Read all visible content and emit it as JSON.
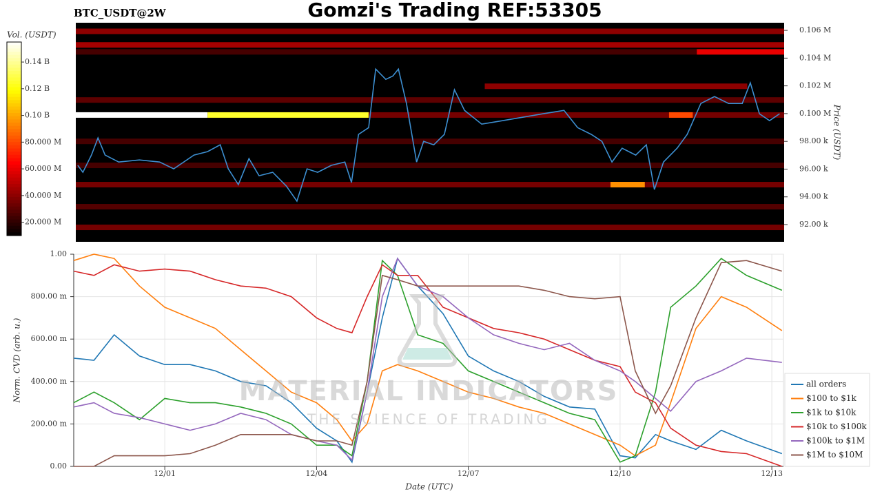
{
  "chart_data": [
    {
      "type": "heatmap",
      "title": "Gomzi's Trading REF:53305",
      "subtitle": "BTC_USDT@2W",
      "ylabel": "Price (USDT)",
      "xlim": [
        -0.8,
        13.23
      ],
      "ylim": [
        90760,
        106550
      ],
      "yticks": [
        {
          "value": 92000,
          "label": "92.00 k"
        },
        {
          "value": 94000,
          "label": "94.00 k"
        },
        {
          "value": 96000,
          "label": "96.00 k"
        },
        {
          "value": 98000,
          "label": "98.00 k"
        },
        {
          "value": 100000,
          "label": "0.100 M"
        },
        {
          "value": 102000,
          "label": "0.102 M"
        },
        {
          "value": 104000,
          "label": "0.104 M"
        },
        {
          "value": 106000,
          "label": "0.106 M"
        }
      ],
      "colorbar": {
        "label": "Vol. (USDT)",
        "lim": [
          10000000,
          155000000
        ],
        "ticks": [
          {
            "value": 20000000,
            "label": "20.000 M"
          },
          {
            "value": 40000000,
            "label": "40.000 M"
          },
          {
            "value": 60000000,
            "label": "60.000 M"
          },
          {
            "value": 80000000,
            "label": "80.000 M"
          },
          {
            "value": 100000000,
            "label": "0.10 B"
          },
          {
            "value": 120000000,
            "label": "0.12 B"
          },
          {
            "value": 140000000,
            "label": "0.14 B"
          }
        ]
      },
      "bands": [
        {
          "price": 105930,
          "start": -0.8,
          "end": 13.23,
          "volume": 40000000
        },
        {
          "price": 104950,
          "start": -0.8,
          "end": 13.23,
          "volume": 45000000
        },
        {
          "price": 104450,
          "start": -0.8,
          "end": 11.5,
          "volume": 25000000
        },
        {
          "price": 104450,
          "start": 11.5,
          "end": 13.23,
          "volume": 60000000
        },
        {
          "price": 101970,
          "start": 7.3,
          "end": 12.5,
          "volume": 40000000
        },
        {
          "price": 100980,
          "start": -0.8,
          "end": 13.23,
          "volume": 30000000
        },
        {
          "price": 99900,
          "start": -0.8,
          "end": 1.81,
          "volume": 155000000
        },
        {
          "price": 99900,
          "start": 1.81,
          "end": 5.0,
          "volume": 125000000
        },
        {
          "price": 99900,
          "start": 5.0,
          "end": 13.23,
          "volume": 35000000
        },
        {
          "price": 99900,
          "start": 10.95,
          "end": 11.42,
          "volume": 80000000
        },
        {
          "price": 98000,
          "start": -0.8,
          "end": 13.23,
          "volume": 25000000
        },
        {
          "price": 96270,
          "start": -0.8,
          "end": 13.23,
          "volume": 25000000
        },
        {
          "price": 94880,
          "start": -0.8,
          "end": 13.23,
          "volume": 35000000
        },
        {
          "price": 94880,
          "start": 9.79,
          "end": 10.47,
          "volume": 95000000
        },
        {
          "price": 93290,
          "start": -0.8,
          "end": 13.23,
          "volume": 28000000
        },
        {
          "price": 91800,
          "start": -0.8,
          "end": 13.23,
          "volume": 35000000
        }
      ],
      "line": {
        "color": "#3d8fd1",
        "x": [
          -0.76,
          -0.66,
          -0.49,
          -0.36,
          -0.22,
          0.05,
          0.46,
          0.86,
          1.14,
          1.54,
          1.81,
          2.06,
          2.22,
          2.42,
          2.63,
          2.83,
          3.1,
          3.37,
          3.58,
          3.78,
          3.99,
          4.26,
          4.53,
          4.66,
          4.8,
          5.0,
          5.14,
          5.34,
          5.48,
          5.59,
          5.75,
          5.95,
          6.09,
          6.29,
          6.5,
          6.7,
          6.9,
          7.24,
          7.65,
          8.06,
          8.46,
          8.87,
          9.14,
          9.41,
          9.62,
          9.82,
          10.02,
          10.29,
          10.5,
          10.66,
          10.84,
          11.11,
          11.31,
          11.58,
          11.85,
          12.13,
          12.4,
          12.56,
          12.74,
          12.94,
          13.14
        ],
        "values": [
          96270,
          95770,
          97010,
          98250,
          97010,
          96510,
          96660,
          96510,
          96020,
          97010,
          97260,
          97750,
          96020,
          94880,
          96760,
          95520,
          95770,
          94780,
          93690,
          96020,
          95770,
          96270,
          96510,
          95030,
          98500,
          98990,
          103210,
          102470,
          102710,
          103210,
          100730,
          96510,
          98000,
          97750,
          98500,
          101720,
          100230,
          99240,
          99490,
          99740,
          99990,
          100230,
          98990,
          98500,
          98000,
          96510,
          97510,
          97010,
          97750,
          94530,
          96510,
          97510,
          98500,
          100730,
          101230,
          100730,
          100730,
          102220,
          99990,
          99490,
          99990
        ]
      }
    },
    {
      "type": "line",
      "xlabel": "Date (UTC)",
      "ylabel": "Norm. CVD (arb. u.)",
      "xlim": [
        -0.8,
        13.23
      ],
      "ylim": [
        0,
        1.0
      ],
      "xticks": [
        {
          "value": 1,
          "label": "12/01"
        },
        {
          "value": 4,
          "label": "12/04"
        },
        {
          "value": 7,
          "label": "12/07"
        },
        {
          "value": 10,
          "label": "12/10"
        },
        {
          "value": 13,
          "label": "12/13"
        }
      ],
      "yticks": [
        {
          "value": 0,
          "label": "0.00"
        },
        {
          "value": 0.2,
          "label": "200.00 m"
        },
        {
          "value": 0.4,
          "label": "400.00 m"
        },
        {
          "value": 0.6,
          "label": "600.00 m"
        },
        {
          "value": 0.8,
          "label": "800.00 m"
        },
        {
          "value": 1.0,
          "label": "1.00"
        }
      ],
      "grid": true,
      "legend": "lower right",
      "x": [
        -0.8,
        -0.4,
        0,
        0.5,
        1,
        1.5,
        2,
        2.5,
        3,
        3.5,
        4,
        4.4,
        4.7,
        5.0,
        5.3,
        5.6,
        6,
        6.5,
        7,
        7.5,
        8,
        8.5,
        9,
        9.5,
        10,
        10.3,
        10.7,
        11,
        11.5,
        12,
        12.5,
        13.2
      ],
      "series": [
        {
          "name": "all orders",
          "color": "#1f77b4",
          "values": [
            0.51,
            0.5,
            0.62,
            0.52,
            0.48,
            0.48,
            0.45,
            0.4,
            0.38,
            0.3,
            0.18,
            0.12,
            0.02,
            0.35,
            0.7,
            0.98,
            0.85,
            0.72,
            0.52,
            0.45,
            0.4,
            0.33,
            0.28,
            0.27,
            0.05,
            0.04,
            0.15,
            0.12,
            0.08,
            0.17,
            0.12,
            0.06
          ]
        },
        {
          "name": "$100 to $1k",
          "color": "#ff7f0e",
          "values": [
            0.97,
            1.0,
            0.98,
            0.85,
            0.75,
            0.7,
            0.65,
            0.55,
            0.45,
            0.35,
            0.3,
            0.22,
            0.12,
            0.2,
            0.45,
            0.48,
            0.45,
            0.4,
            0.35,
            0.32,
            0.28,
            0.25,
            0.2,
            0.15,
            0.1,
            0.05,
            0.1,
            0.3,
            0.65,
            0.8,
            0.75,
            0.64
          ]
        },
        {
          "name": "$1k to $10k",
          "color": "#2ca02c",
          "values": [
            0.3,
            0.35,
            0.3,
            0.22,
            0.32,
            0.3,
            0.3,
            0.28,
            0.25,
            0.2,
            0.1,
            0.1,
            0.05,
            0.4,
            0.97,
            0.9,
            0.62,
            0.58,
            0.45,
            0.4,
            0.35,
            0.3,
            0.25,
            0.22,
            0.02,
            0.05,
            0.35,
            0.75,
            0.85,
            0.98,
            0.9,
            0.83
          ]
        },
        {
          "name": "$10k to $100k",
          "color": "#d62728",
          "values": [
            0.92,
            0.9,
            0.95,
            0.92,
            0.93,
            0.92,
            0.88,
            0.85,
            0.84,
            0.8,
            0.7,
            0.65,
            0.63,
            0.8,
            0.95,
            0.9,
            0.9,
            0.75,
            0.7,
            0.65,
            0.63,
            0.6,
            0.55,
            0.5,
            0.47,
            0.35,
            0.3,
            0.18,
            0.1,
            0.07,
            0.06,
            0.0
          ]
        },
        {
          "name": "$100k to $1M",
          "color": "#9467bd",
          "values": [
            0.28,
            0.3,
            0.25,
            0.23,
            0.2,
            0.17,
            0.2,
            0.25,
            0.22,
            0.15,
            0.12,
            0.1,
            0.03,
            0.35,
            0.8,
            0.98,
            0.85,
            0.8,
            0.7,
            0.62,
            0.58,
            0.55,
            0.58,
            0.5,
            0.45,
            0.4,
            0.32,
            0.26,
            0.4,
            0.45,
            0.51,
            0.49
          ]
        },
        {
          "name": "$1M to $10M",
          "color": "#8c564b",
          "values": [
            0.0,
            0.0,
            0.05,
            0.05,
            0.05,
            0.06,
            0.1,
            0.15,
            0.15,
            0.15,
            0.12,
            0.12,
            0.1,
            0.4,
            0.9,
            0.88,
            0.85,
            0.85,
            0.85,
            0.85,
            0.85,
            0.83,
            0.8,
            0.79,
            0.8,
            0.45,
            0.25,
            0.38,
            0.7,
            0.96,
            0.97,
            0.92
          ]
        }
      ]
    }
  ],
  "watermark": {
    "title": "MATERIAL INDICATORS",
    "subtitle": "THE SCIENCE OF TRADING"
  }
}
